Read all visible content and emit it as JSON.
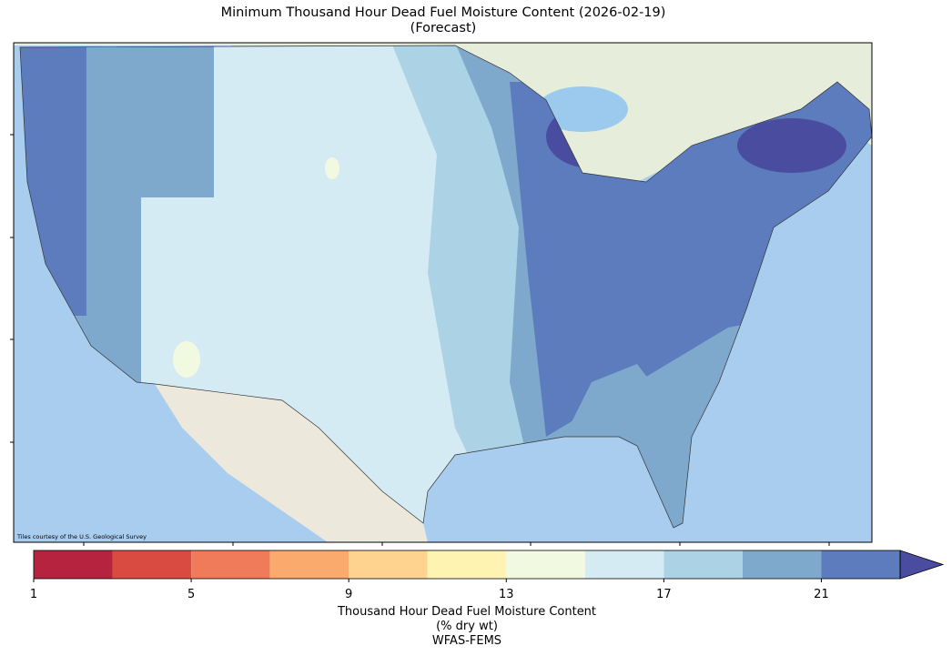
{
  "title": "Minimum Thousand Hour Dead Fuel Moisture Content (2026-02-19)",
  "subtitle": "(Forecast)",
  "attribution": "Tiles courtesy of the U.S. Geological Survey",
  "colorbar": {
    "boundaries": [
      1,
      3,
      5,
      7,
      9,
      11,
      13,
      15,
      17,
      19,
      21,
      23
    ],
    "colors": [
      "#b5233f",
      "#d94b41",
      "#f07b5a",
      "#f9aa6c",
      "#fdd38f",
      "#fff3b2",
      "#f2f9e1",
      "#d5ebf3",
      "#abd2e5",
      "#7ea9cd",
      "#5c7cbd"
    ],
    "extend": "max",
    "extend_color": "#4a4ca0",
    "ticks": [
      1,
      5,
      9,
      13,
      17,
      21
    ],
    "label": [
      "Thousand Hour Dead Fuel Moisture Content",
      "(% dry wt)",
      "WFAS-FEMS"
    ]
  }
}
